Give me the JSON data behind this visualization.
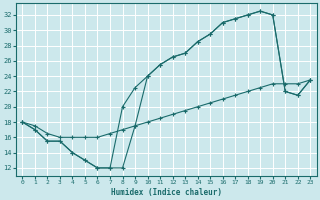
{
  "xlabel": "Humidex (Indice chaleur)",
  "bg_color": "#cce8ec",
  "line_color": "#1a6b6b",
  "grid_color": "#ffffff",
  "xlim": [
    -0.5,
    23.5
  ],
  "ylim": [
    11.0,
    33.5
  ],
  "xticks": [
    0,
    1,
    2,
    3,
    4,
    5,
    6,
    7,
    8,
    9,
    10,
    11,
    12,
    13,
    14,
    15,
    16,
    17,
    18,
    19,
    20,
    21,
    22,
    23
  ],
  "yticks": [
    12,
    14,
    16,
    18,
    20,
    22,
    24,
    26,
    28,
    30,
    32
  ],
  "line1_x": [
    0,
    1,
    2,
    3,
    4,
    5,
    6,
    7,
    8,
    9,
    10,
    11,
    12,
    13,
    14,
    15,
    16,
    17,
    18,
    19,
    20,
    21,
    22,
    23
  ],
  "line1_y": [
    18,
    17,
    15.5,
    15.5,
    14,
    13,
    12,
    12,
    12,
    17.5,
    24,
    25.5,
    26.5,
    27,
    28.5,
    29.5,
    31,
    31.5,
    32,
    32.5,
    32,
    22,
    21.5,
    23.5
  ],
  "line2_x": [
    0,
    1,
    2,
    3,
    4,
    5,
    6,
    7,
    8,
    9,
    10,
    11,
    12,
    13,
    14,
    15,
    16,
    17,
    18,
    19,
    20,
    21,
    22,
    23
  ],
  "line2_y": [
    18,
    17,
    15.5,
    15.5,
    14,
    13,
    12,
    12,
    20,
    22.5,
    24,
    25.5,
    26.5,
    27,
    28.5,
    29.5,
    31,
    31.5,
    32,
    32.5,
    32,
    22,
    21.5,
    23.5
  ],
  "line3_x": [
    0,
    1,
    2,
    3,
    4,
    5,
    6,
    7,
    8,
    9,
    10,
    11,
    12,
    13,
    14,
    15,
    16,
    17,
    18,
    19,
    20,
    21,
    22,
    23
  ],
  "line3_y": [
    18,
    17.5,
    16.5,
    16,
    16,
    16,
    16,
    16.5,
    17,
    17.5,
    18,
    18.5,
    19,
    19.5,
    20,
    20.5,
    21,
    21.5,
    22,
    22.5,
    23,
    23,
    23,
    23.5
  ]
}
